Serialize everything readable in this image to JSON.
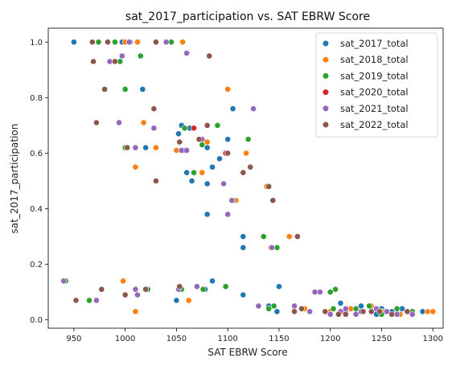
{
  "chart_data": {
    "type": "scatter",
    "title": "sat_2017_participation vs. SAT EBRW Score",
    "xlabel": "SAT EBRW Score",
    "ylabel": "sat_2017_participation",
    "xlim": [
      925,
      1310
    ],
    "ylim": [
      -0.03,
      1.05
    ],
    "xticks": [
      950,
      1000,
      1050,
      1100,
      1150,
      1200,
      1250,
      1300
    ],
    "yticks": [
      0.0,
      0.2,
      0.4,
      0.6,
      0.8,
      1.0
    ],
    "xtick_labels": [
      "950",
      "1000",
      "1050",
      "1100",
      "1150",
      "1200",
      "1250",
      "1300"
    ],
    "ytick_labels": [
      "0.0",
      "0.2",
      "0.4",
      "0.6",
      "0.8",
      "1.0"
    ],
    "grid": false,
    "legend_position": "top-right",
    "series": [
      {
        "name": "sat_2017_total",
        "color": "#1f77b4",
        "points": [
          [
            950,
            1.0
          ],
          [
            997,
            1.0
          ],
          [
            1005,
            1.0
          ],
          [
            1017,
            0.83
          ],
          [
            1020,
            0.62
          ],
          [
            1052,
            0.67
          ],
          [
            1055,
            0.7
          ],
          [
            1058,
            0.61
          ],
          [
            1060,
            0.53
          ],
          [
            1063,
            0.69
          ],
          [
            1065,
            0.5
          ],
          [
            1080,
            0.62
          ],
          [
            1085,
            0.55
          ],
          [
            1092,
            0.58
          ],
          [
            1100,
            0.65
          ],
          [
            1105,
            0.76
          ],
          [
            1115,
            0.3
          ],
          [
            1115,
            0.26
          ],
          [
            1140,
            0.05
          ],
          [
            1148,
            0.03
          ],
          [
            1080,
            0.38
          ],
          [
            1080,
            0.49
          ],
          [
            1050,
            0.07
          ],
          [
            1078,
            0.11
          ],
          [
            1085,
            0.14
          ],
          [
            1115,
            0.09
          ],
          [
            1150,
            0.12
          ],
          [
            1260,
            0.03
          ],
          [
            1280,
            0.02
          ],
          [
            1290,
            0.03
          ],
          [
            1250,
            0.04
          ],
          [
            1230,
            0.05
          ],
          [
            1215,
            0.03
          ],
          [
            1200,
            0.02
          ],
          [
            1270,
            0.04
          ],
          [
            1245,
            0.02
          ],
          [
            1210,
            0.06
          ]
        ]
      },
      {
        "name": "sat_2018_total",
        "color": "#ff7f0e",
        "points": [
          [
            1000,
            1.0
          ],
          [
            1012,
            1.0
          ],
          [
            1056,
            1.0
          ],
          [
            1060,
            0.96
          ],
          [
            1018,
            0.71
          ],
          [
            1010,
            0.55
          ],
          [
            1030,
            0.62
          ],
          [
            1050,
            0.61
          ],
          [
            1075,
            0.53
          ],
          [
            1080,
            0.64
          ],
          [
            1100,
            0.83
          ],
          [
            1118,
            0.6
          ],
          [
            1120,
            0.65
          ],
          [
            1125,
            0.76
          ],
          [
            1138,
            0.48
          ],
          [
            1142,
            0.26
          ],
          [
            1160,
            0.3
          ],
          [
            1100,
            0.38
          ],
          [
            1108,
            0.43
          ],
          [
            998,
            0.14
          ],
          [
            1010,
            0.03
          ],
          [
            1062,
            0.07
          ],
          [
            1165,
            0.05
          ],
          [
            1175,
            0.04
          ],
          [
            1200,
            0.03
          ],
          [
            1220,
            0.04
          ],
          [
            1250,
            0.03
          ],
          [
            1268,
            0.02
          ],
          [
            1280,
            0.03
          ],
          [
            1295,
            0.03
          ],
          [
            1300,
            0.03
          ],
          [
            1240,
            0.05
          ]
        ]
      },
      {
        "name": "sat_2019_total",
        "color": "#2ca02c",
        "points": [
          [
            974,
            1.0
          ],
          [
            990,
            1.0
          ],
          [
            995,
            0.93
          ],
          [
            1015,
            0.95
          ],
          [
            1045,
            1.0
          ],
          [
            1000,
            0.83
          ],
          [
            1000,
            0.62
          ],
          [
            1058,
            0.69
          ],
          [
            1067,
            0.53
          ],
          [
            1075,
            0.63
          ],
          [
            1090,
            0.7
          ],
          [
            1105,
            0.43
          ],
          [
            1120,
            0.65
          ],
          [
            1135,
            0.3
          ],
          [
            1148,
            0.26
          ],
          [
            942,
            0.14
          ],
          [
            965,
            0.07
          ],
          [
            1010,
            0.11
          ],
          [
            1022,
            0.11
          ],
          [
            1055,
            0.11
          ],
          [
            1076,
            0.11
          ],
          [
            1098,
            0.12
          ],
          [
            1140,
            0.04
          ],
          [
            1145,
            0.05
          ],
          [
            1200,
            0.1
          ],
          [
            1205,
            0.11
          ],
          [
            1225,
            0.02
          ],
          [
            1238,
            0.05
          ],
          [
            1255,
            0.03
          ],
          [
            1265,
            0.04
          ],
          [
            1280,
            0.03
          ],
          [
            1250,
            0.02
          ],
          [
            1215,
            0.04
          ],
          [
            1225,
            0.04
          ],
          [
            1203,
            0.04
          ]
        ]
      },
      {
        "name": "sat_2020_total",
        "color": "#d62728",
        "points": [
          [
            1067,
            0.69
          ],
          [
            1098,
            0.6
          ],
          [
            1212,
            0.03
          ]
        ]
      },
      {
        "name": "sat_2021_total",
        "color": "#9467bd",
        "points": [
          [
            940,
            0.14
          ],
          [
            972,
            0.07
          ],
          [
            985,
            0.93
          ],
          [
            997,
            0.95
          ],
          [
            1004,
            1.0
          ],
          [
            1040,
            1.0
          ],
          [
            1060,
            0.96
          ],
          [
            994,
            0.71
          ],
          [
            1010,
            0.62
          ],
          [
            1028,
            0.69
          ],
          [
            1055,
            0.61
          ],
          [
            1060,
            0.61
          ],
          [
            1075,
            0.65
          ],
          [
            1096,
            0.49
          ],
          [
            1100,
            0.38
          ],
          [
            1104,
            0.43
          ],
          [
            1125,
            0.76
          ],
          [
            1143,
            0.26
          ],
          [
            1165,
            0.05
          ],
          [
            1180,
            0.03
          ],
          [
            1190,
            0.1
          ],
          [
            1052,
            0.11
          ],
          [
            1070,
            0.12
          ],
          [
            1010,
            0.11
          ],
          [
            1012,
            0.09
          ],
          [
            1130,
            0.05
          ],
          [
            1185,
            0.1
          ],
          [
            1210,
            0.03
          ],
          [
            1230,
            0.03
          ],
          [
            1255,
            0.03
          ],
          [
            1280,
            0.02
          ],
          [
            1215,
            0.04
          ],
          [
            1245,
            0.04
          ],
          [
            1225,
            0.02
          ],
          [
            1240,
            0.03
          ],
          [
            1265,
            0.02
          ],
          [
            1200,
            0.02
          ]
        ]
      },
      {
        "name": "sat_2022_total",
        "color": "#8c564b",
        "points": [
          [
            968,
            1.0
          ],
          [
            983,
            1.0
          ],
          [
            1030,
            1.0
          ],
          [
            969,
            0.93
          ],
          [
            980,
            0.83
          ],
          [
            990,
            0.93
          ],
          [
            1082,
            0.95
          ],
          [
            972,
            0.71
          ],
          [
            1028,
            0.76
          ],
          [
            1002,
            0.62
          ],
          [
            1030,
            0.5
          ],
          [
            1053,
            0.64
          ],
          [
            1072,
            0.65
          ],
          [
            1080,
            0.7
          ],
          [
            1100,
            0.6
          ],
          [
            1115,
            0.53
          ],
          [
            1122,
            0.55
          ],
          [
            1140,
            0.48
          ],
          [
            1144,
            0.43
          ],
          [
            1168,
            0.3
          ],
          [
            952,
            0.07
          ],
          [
            977,
            0.11
          ],
          [
            1000,
            0.09
          ],
          [
            1053,
            0.12
          ],
          [
            1020,
            0.11
          ],
          [
            1165,
            0.03
          ],
          [
            1172,
            0.04
          ],
          [
            1195,
            0.03
          ],
          [
            1208,
            0.02
          ],
          [
            1232,
            0.03
          ],
          [
            1260,
            0.02
          ],
          [
            1275,
            0.03
          ],
          [
            1215,
            0.02
          ],
          [
            1240,
            0.03
          ],
          [
            1248,
            0.03
          ]
        ]
      }
    ]
  }
}
